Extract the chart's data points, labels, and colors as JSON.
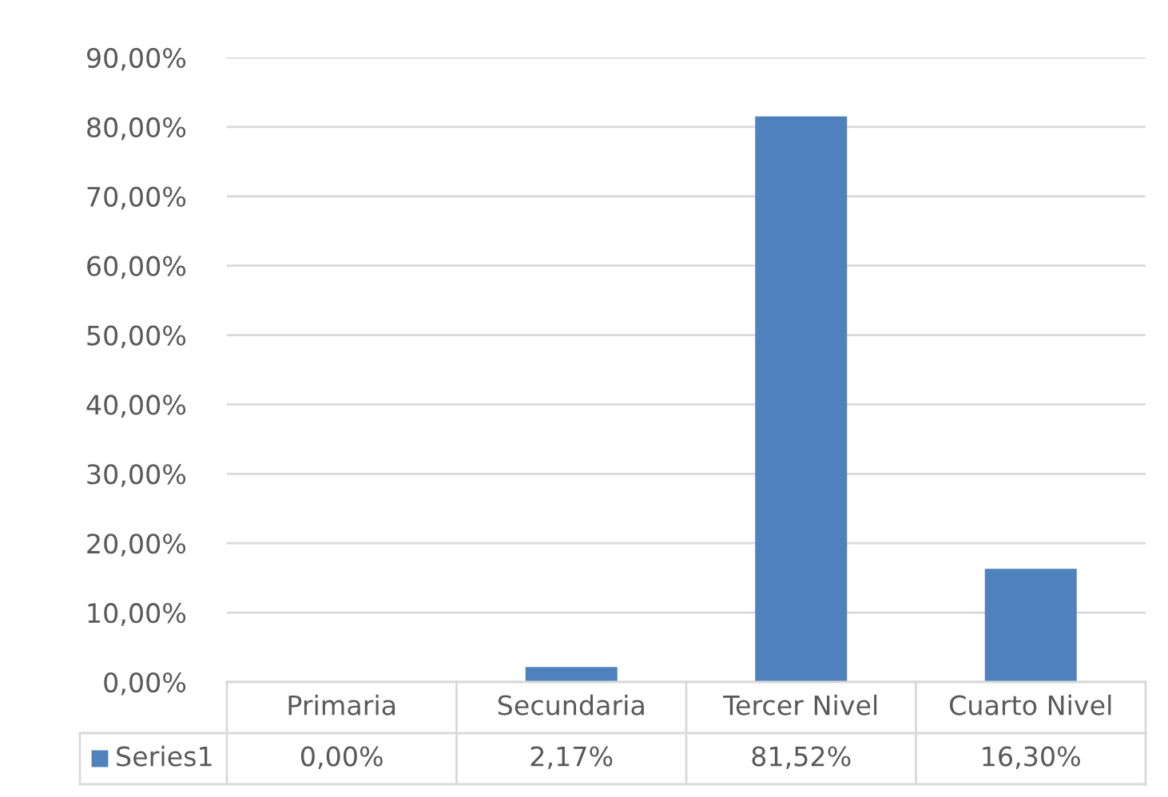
{
  "chart_data": {
    "type": "bar",
    "categories": [
      "Primaria",
      "Secundaria",
      "Tercer Nivel",
      "Cuarto Nivel"
    ],
    "series": [
      {
        "name": "Series1",
        "color": "#4f81bd",
        "values": [
          0,
          2.17,
          81.52,
          16.3
        ],
        "value_labels": [
          "0,00%",
          "2,17%",
          "81,52%",
          "16,30%"
        ]
      }
    ],
    "ylim": [
      0,
      90
    ],
    "yticks": [
      {
        "value": 0,
        "label": "0,00%"
      },
      {
        "value": 10,
        "label": "10,00%"
      },
      {
        "value": 20,
        "label": "20,00%"
      },
      {
        "value": 30,
        "label": "30,00%"
      },
      {
        "value": 40,
        "label": "40,00%"
      },
      {
        "value": 50,
        "label": "50,00%"
      },
      {
        "value": 60,
        "label": "60,00%"
      },
      {
        "value": 70,
        "label": "70,00%"
      },
      {
        "value": 80,
        "label": "80,00%"
      },
      {
        "value": 90,
        "label": "90,00%"
      }
    ],
    "grid": "y",
    "legend": "bottom"
  }
}
